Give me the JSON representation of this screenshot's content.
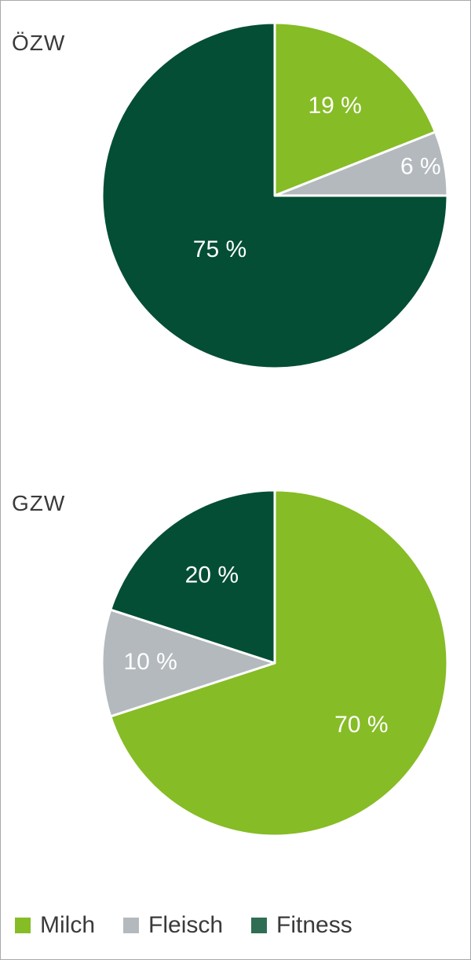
{
  "chart_data": [
    {
      "type": "pie",
      "title": "ÖZW",
      "categories": [
        "Milch",
        "Fleisch",
        "Fitness"
      ],
      "values": [
        19,
        6,
        75
      ],
      "labels": [
        "19 %",
        "6 %",
        "75 %"
      ],
      "start_direction": "top",
      "direction": "clockwise"
    },
    {
      "type": "pie",
      "title": "GZW",
      "categories": [
        "Milch",
        "Fleisch",
        "Fitness"
      ],
      "values": [
        70,
        10,
        20
      ],
      "labels": [
        "70 %",
        "10 %",
        "20 %"
      ],
      "start_direction": "top",
      "direction": "clockwise"
    }
  ],
  "legend": {
    "placement": "bottom",
    "items": [
      {
        "label": "Milch",
        "color": "#86bc25"
      },
      {
        "label": "Fleisch",
        "color": "#b4b9bd"
      },
      {
        "label": "Fitness",
        "color": "#2f6e54"
      }
    ]
  },
  "colors": {
    "Milch": "#86bc25",
    "Fleisch": "#b4b9bd",
    "Fitness": "#034e35",
    "slice_border": "#ffffff",
    "frame_border": "#a8aaad"
  }
}
